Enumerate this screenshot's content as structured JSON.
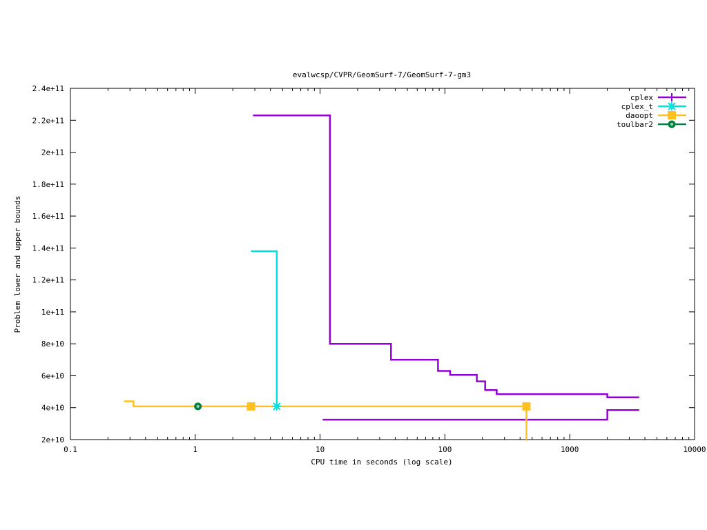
{
  "chart_data": {
    "type": "line",
    "title": "evalwcsp/CVPR/GeomSurf-7/GeomSurf-7-gm3",
    "xlabel": "CPU time in seconds (log scale)",
    "ylabel": "Problem lower and upper bounds",
    "xscale": "log",
    "xlim": [
      0.1,
      10000
    ],
    "ylim": [
      20000000000,
      240000000000
    ],
    "grid": false,
    "legend_position": "top-right",
    "x_ticks": [
      {
        "value": 0.1,
        "label": "0.1"
      },
      {
        "value": 1,
        "label": "1"
      },
      {
        "value": 10,
        "label": "10"
      },
      {
        "value": 100,
        "label": "100"
      },
      {
        "value": 1000,
        "label": "1000"
      },
      {
        "value": 10000,
        "label": "10000"
      }
    ],
    "y_ticks": [
      {
        "value": 20000000000,
        "label": "2e+10"
      },
      {
        "value": 40000000000,
        "label": "4e+10"
      },
      {
        "value": 60000000000,
        "label": "6e+10"
      },
      {
        "value": 80000000000,
        "label": "8e+10"
      },
      {
        "value": 100000000000,
        "label": "1e+11"
      },
      {
        "value": 120000000000,
        "label": "1.2e+11"
      },
      {
        "value": 140000000000,
        "label": "1.4e+11"
      },
      {
        "value": 160000000000,
        "label": "1.6e+11"
      },
      {
        "value": 180000000000,
        "label": "1.8e+11"
      },
      {
        "value": 200000000000,
        "label": "2e+11"
      },
      {
        "value": 220000000000,
        "label": "2.2e+11"
      },
      {
        "value": 240000000000,
        "label": "2.4e+11"
      }
    ],
    "series": [
      {
        "name": "cplex",
        "color": "#9400d3",
        "marker": "plus",
        "paths": [
          {
            "role": "upper",
            "step": true,
            "points": [
              [
                2.9,
                223000000000
              ],
              [
                12,
                223000000000
              ],
              [
                12,
                80000000000
              ],
              [
                37,
                80000000000
              ],
              [
                37,
                70000000000
              ],
              [
                88,
                70000000000
              ],
              [
                88,
                63000000000
              ],
              [
                110,
                63000000000
              ],
              [
                110,
                60500000000
              ],
              [
                180,
                60500000000
              ],
              [
                180,
                56500000000
              ],
              [
                210,
                56500000000
              ],
              [
                210,
                51000000000
              ],
              [
                260,
                51000000000
              ],
              [
                260,
                48500000000
              ],
              [
                2000,
                48500000000
              ],
              [
                2000,
                46500000000
              ],
              [
                3600,
                46500000000
              ]
            ]
          },
          {
            "role": "lower",
            "step": true,
            "points": [
              [
                10.5,
                32500000000
              ],
              [
                2000,
                32500000000
              ],
              [
                2000,
                38500000000
              ],
              [
                3600,
                38500000000
              ]
            ]
          }
        ],
        "markers": []
      },
      {
        "name": "cplex_t",
        "color": "#00e0e0",
        "marker": "star",
        "paths": [
          {
            "role": "upper",
            "step": true,
            "points": [
              [
                2.8,
                138000000000
              ],
              [
                4.5,
                138000000000
              ],
              [
                4.5,
                40800000000
              ]
            ]
          }
        ],
        "markers": [
          [
            4.5,
            40800000000
          ]
        ]
      },
      {
        "name": "daoopt",
        "color": "#ffc020",
        "marker": "square",
        "paths": [
          {
            "role": "upper",
            "step": true,
            "points": [
              [
                0.27,
                44000000000
              ],
              [
                0.32,
                44000000000
              ],
              [
                0.32,
                40800000000
              ],
              [
                450,
                40800000000
              ],
              [
                450,
                20000000000
              ]
            ]
          }
        ],
        "markers": [
          [
            2.8,
            40800000000
          ],
          [
            450,
            40800000000
          ]
        ]
      },
      {
        "name": "toulbar2",
        "color": "#008040",
        "marker": "circle",
        "paths": [],
        "markers": [
          [
            1.05,
            40800000000
          ]
        ]
      }
    ]
  }
}
